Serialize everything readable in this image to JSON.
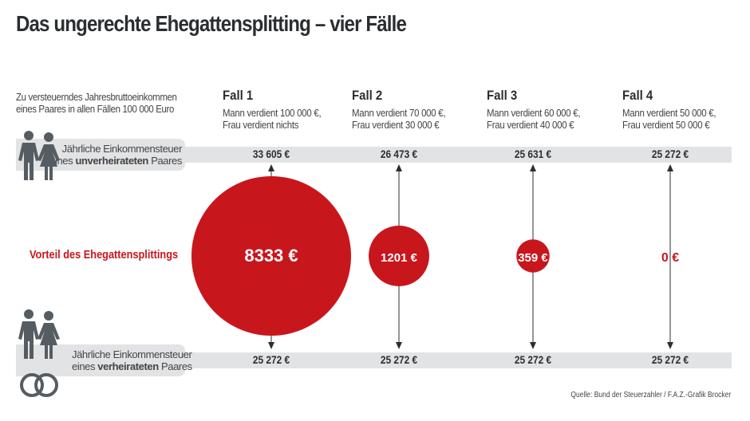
{
  "title": "Das ungerechte Ehegattensplitting – vier Fälle",
  "intro": [
    "Zu versteuerndes Jahresbruttoeinkommen",
    "eines Paares in allen Fällen 100 000 Euro"
  ],
  "unmarried_label": {
    "line1": "Jährliche Einkommensteuer",
    "line2_pre": "eines ",
    "line2_bold": "unverheirateten",
    "line2_post": " Paares"
  },
  "married_label": {
    "line1": "Jährliche Einkommensteuer",
    "line2_pre": "eines ",
    "line2_bold": "verheirateten",
    "line2_post": " Paares"
  },
  "advantage_label": "Vorteil des Ehegattensplittings",
  "source": "Quelle: Bund der Steuerzahler / F.A.Z.-Grafik Brocker",
  "colors": {
    "accent": "#c8161d",
    "bar": "#e2e3e5",
    "icon": "#555d63"
  },
  "chart_data": {
    "type": "bubble",
    "cases": [
      {
        "name": "Fall 1",
        "desc1": "Mann verdient 100 000 €,",
        "desc2": "Frau verdient nichts",
        "unmarried_tax": "33 605 €",
        "married_tax": "25 272 €",
        "advantage": 8333,
        "advantage_label": "8333 €"
      },
      {
        "name": "Fall 2",
        "desc1": "Mann verdient 70 000 €,",
        "desc2": "Frau verdient 30 000 €",
        "unmarried_tax": "26 473 €",
        "married_tax": "25 272 €",
        "advantage": 1201,
        "advantage_label": "1201 €"
      },
      {
        "name": "Fall 3",
        "desc1": "Mann verdient 60 000 €,",
        "desc2": "Frau verdient 40 000 €",
        "unmarried_tax": "25 631 €",
        "married_tax": "25 272 €",
        "advantage": 359,
        "advantage_label": "359 €"
      },
      {
        "name": "Fall 4",
        "desc1": "Mann verdient 50 000 €,",
        "desc2": "Frau verdient 50 000 €",
        "unmarried_tax": "25 272 €",
        "married_tax": "25 272 €",
        "advantage": 0,
        "advantage_label": "0 €"
      }
    ]
  }
}
